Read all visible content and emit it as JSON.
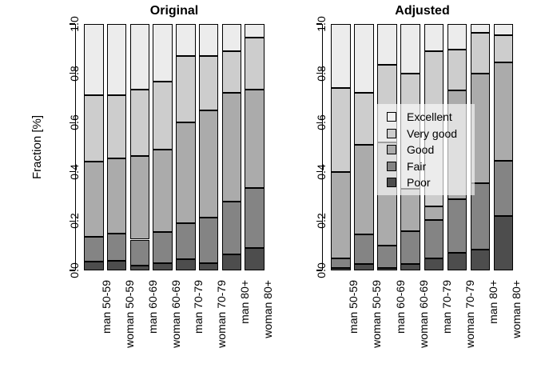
{
  "y_axis_title": "Fraction [%]",
  "legend": {
    "entries": [
      {
        "label": "Excellent",
        "color": "#f0f0f0"
      },
      {
        "label": "Very good",
        "color": "#cdcdcd"
      },
      {
        "label": "Good",
        "color": "#ababab"
      },
      {
        "label": "Fair",
        "color": "#848484"
      },
      {
        "label": "Poor",
        "color": "#4d4d4d"
      }
    ]
  },
  "chart_data": [
    {
      "type": "bar",
      "stacked": true,
      "title": "Original",
      "ylabel": "Fraction [%]",
      "ylim": [
        0,
        1
      ],
      "ytick_labels": [
        "0.0",
        "0.2",
        "0.4",
        "0.6",
        "0.8",
        "1.0"
      ],
      "ytick_values": [
        0,
        0.2,
        0.4,
        0.6,
        0.8,
        1.0
      ],
      "grid": false,
      "categories": [
        "man 50-59",
        "woman 50-59",
        "man 60-69",
        "woman 60-69",
        "man 70-79",
        "woman 70-79",
        "man 80+",
        "woman 80+"
      ],
      "series": [
        {
          "name": "Poor",
          "color": "#4d4d4d",
          "values": [
            0.035,
            0.04,
            0.02,
            0.03,
            0.045,
            0.03,
            0.065,
            0.09
          ]
        },
        {
          "name": "Fair",
          "color": "#848484",
          "values": [
            0.1,
            0.11,
            0.105,
            0.125,
            0.145,
            0.185,
            0.215,
            0.245
          ]
        },
        {
          "name": "Good",
          "color": "#ababab",
          "values": [
            0.305,
            0.305,
            0.34,
            0.335,
            0.41,
            0.435,
            0.44,
            0.4
          ]
        },
        {
          "name": "Very good",
          "color": "#cdcdcd",
          "values": [
            0.27,
            0.255,
            0.27,
            0.275,
            0.27,
            0.22,
            0.17,
            0.21
          ]
        },
        {
          "name": "Excellent",
          "color": "#ececec",
          "values": [
            0.29,
            0.29,
            0.265,
            0.235,
            0.13,
            0.13,
            0.11,
            0.055
          ]
        }
      ]
    },
    {
      "type": "bar",
      "stacked": true,
      "title": "Adjusted",
      "ylabel": "",
      "ylim": [
        0,
        1
      ],
      "ytick_labels": [
        "0.0",
        "0.2",
        "0.4",
        "0.6",
        "0.8",
        "1.0"
      ],
      "ytick_values": [
        0,
        0.2,
        0.4,
        0.6,
        0.8,
        1.0
      ],
      "grid": false,
      "legend_position": "center",
      "categories": [
        "man 50-59",
        "woman 50-59",
        "man 60-69",
        "woman 60-69",
        "man 70-79",
        "woman 70-79",
        "man 80+",
        "woman 80+"
      ],
      "series": [
        {
          "name": "Poor",
          "color": "#4d4d4d",
          "values": [
            0.01,
            0.025,
            0.01,
            0.025,
            0.05,
            0.07,
            0.085,
            0.22
          ]
        },
        {
          "name": "Fair",
          "color": "#848484",
          "values": [
            0.04,
            0.12,
            0.09,
            0.135,
            0.155,
            0.22,
            0.27,
            0.225
          ]
        },
        {
          "name": "Good",
          "color": "#ababab",
          "values": [
            0.35,
            0.365,
            0.42,
            0.17,
            0.055,
            0.44,
            0.445,
            0.4
          ]
        },
        {
          "name": "Very good",
          "color": "#cdcdcd",
          "values": [
            0.34,
            0.21,
            0.315,
            0.47,
            0.63,
            0.165,
            0.165,
            0.11
          ]
        },
        {
          "name": "Excellent",
          "color": "#ececec",
          "values": [
            0.26,
            0.28,
            0.165,
            0.2,
            0.11,
            0.105,
            0.035,
            0.045
          ]
        }
      ]
    }
  ]
}
